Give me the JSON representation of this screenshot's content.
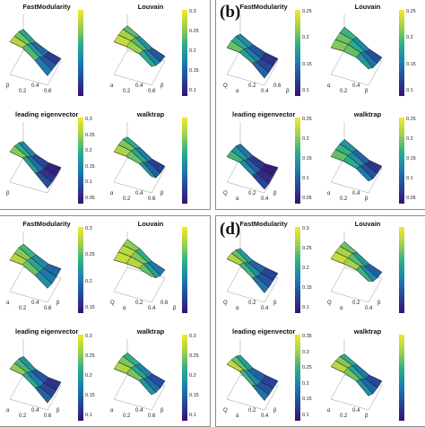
{
  "panels": [
    {
      "letter": "",
      "plots": [
        {
          "title": "FastModularity",
          "ticks": [],
          "axis_labels": [
            "β",
            "0.2",
            "0.4",
            "0.6"
          ]
        },
        {
          "title": "Louvain",
          "ticks": [
            "0.3",
            "0.25",
            "0.2",
            "0.15",
            "0.1"
          ],
          "axis_labels": [
            "α",
            "0.2",
            "0.4",
            "0.6",
            "β"
          ]
        },
        {
          "title": "leading eigenvector",
          "ticks": [
            "0.3",
            "0.25",
            "0.2",
            "0.15",
            "0.1",
            "0.05"
          ],
          "axis_labels": [
            "β"
          ]
        },
        {
          "title": "walktrap",
          "ticks": [],
          "axis_labels": [
            "α",
            "0.2",
            "0.4",
            "0.6",
            "β"
          ]
        }
      ]
    },
    {
      "letter": "(b)",
      "plots": [
        {
          "title": "FastModularity",
          "ticks": [
            "0.25",
            "0.2",
            "0.15",
            "0.1"
          ],
          "axis_labels": [
            "Q",
            "α",
            "0.2",
            "0.4",
            "0.6",
            "β"
          ]
        },
        {
          "title": "Louvain",
          "ticks": [
            "0.25",
            "0.2",
            "0.15",
            "0.1"
          ],
          "axis_labels": [
            "α",
            "0.2",
            "0.4",
            "β"
          ]
        },
        {
          "title": "leading eigenvector",
          "ticks": [
            "0.25",
            "0.2",
            "0.15",
            "0.1",
            "0.05"
          ],
          "axis_labels": [
            "Q",
            "α",
            "0.2",
            "0.4",
            "β"
          ]
        },
        {
          "title": "walktrap",
          "ticks": [
            "0.25",
            "0.2",
            "0.15",
            "0.1",
            "0.05"
          ],
          "axis_labels": [
            "α",
            "0.2",
            "0.4",
            "β"
          ]
        }
      ]
    },
    {
      "letter": "",
      "plots": [
        {
          "title": "FastModularity",
          "ticks": [
            "0.3",
            "0.25",
            "0.2",
            "0.15"
          ],
          "axis_labels": [
            "α",
            "0.2",
            "0.4",
            "0.6",
            "β"
          ]
        },
        {
          "title": "Louvain",
          "ticks": [],
          "axis_labels": [
            "Q",
            "α",
            "0.2",
            "0.4",
            "0.6",
            "β"
          ]
        },
        {
          "title": "leading eigenvector",
          "ticks": [
            "0.3",
            "0.25",
            "0.2",
            "0.15",
            "0.1"
          ],
          "axis_labels": [
            "α",
            "0.2",
            "0.4",
            "0.6",
            "β"
          ]
        },
        {
          "title": "walktrap",
          "ticks": [
            "0.3",
            "0.25",
            "0.2",
            "0.15",
            "0.1"
          ],
          "axis_labels": [
            "α",
            "0.2",
            "0.4",
            "0.6",
            "β"
          ]
        }
      ]
    },
    {
      "letter": "(d)",
      "plots": [
        {
          "title": "FastModularity",
          "ticks": [
            "0.3",
            "0.25",
            "0.2",
            "0.15",
            "0.1"
          ],
          "axis_labels": [
            "Q",
            "α",
            "0.2",
            "0.4",
            "β"
          ]
        },
        {
          "title": "Louvain",
          "ticks": [],
          "axis_labels": [
            "Q",
            "α",
            "0.2",
            "0.4",
            "β"
          ]
        },
        {
          "title": "leading eigenvector",
          "ticks": [
            "0.35",
            "0.3",
            "0.25",
            "0.2",
            "0.15",
            "0.1"
          ],
          "axis_labels": [
            "Q",
            "α",
            "0.2",
            "0.4",
            "β"
          ]
        },
        {
          "title": "walktrap",
          "ticks": [],
          "axis_labels": [
            "α",
            "0.2",
            "0.4",
            "β"
          ]
        }
      ]
    }
  ],
  "colors": {
    "high": "#f5e82a",
    "mid": "#2aae8a",
    "low": "#25479a",
    "lowest": "#3a0f6e"
  },
  "chart_data": {
    "type": "surface",
    "title": "",
    "xlabel": "α",
    "ylabel": "β",
    "zlabel": "Q",
    "x": [
      0.0,
      0.2,
      0.4,
      0.6
    ],
    "y": [
      0.0,
      0.2,
      0.4,
      0.6
    ],
    "surfaces": [
      {
        "panel": "",
        "method": "FastModularity",
        "z": [
          [
            0.32,
            0.3,
            0.22,
            0.12
          ],
          [
            0.3,
            0.26,
            0.18,
            0.1
          ],
          [
            0.27,
            0.2,
            0.12,
            0.08
          ],
          [
            0.22,
            0.14,
            0.09,
            0.06
          ]
        ]
      },
      {
        "panel": "",
        "method": "Louvain",
        "z": [
          [
            0.32,
            0.31,
            0.28,
            0.2
          ],
          [
            0.31,
            0.29,
            0.24,
            0.14
          ],
          [
            0.29,
            0.25,
            0.17,
            0.1
          ],
          [
            0.25,
            0.19,
            0.12,
            0.08
          ]
        ]
      },
      {
        "panel": "",
        "method": "leading eigenvector",
        "z": [
          [
            0.3,
            0.28,
            0.18,
            0.08
          ],
          [
            0.28,
            0.22,
            0.12,
            0.06
          ],
          [
            0.24,
            0.15,
            0.08,
            0.05
          ],
          [
            0.18,
            0.1,
            0.06,
            0.05
          ]
        ]
      },
      {
        "panel": "",
        "method": "walktrap",
        "z": [
          [
            0.3,
            0.29,
            0.26,
            0.18
          ],
          [
            0.29,
            0.27,
            0.2,
            0.1
          ],
          [
            0.27,
            0.22,
            0.14,
            0.07
          ],
          [
            0.22,
            0.16,
            0.09,
            0.06
          ]
        ]
      },
      {
        "panel": "(b)",
        "method": "FastModularity",
        "z": [
          [
            0.27,
            0.26,
            0.2,
            0.1
          ],
          [
            0.26,
            0.22,
            0.14,
            0.08
          ],
          [
            0.23,
            0.16,
            0.1,
            0.07
          ],
          [
            0.18,
            0.12,
            0.08,
            0.06
          ]
        ]
      },
      {
        "panel": "(b)",
        "method": "Louvain",
        "z": [
          [
            0.27,
            0.27,
            0.25,
            0.18
          ],
          [
            0.27,
            0.26,
            0.22,
            0.12
          ],
          [
            0.26,
            0.23,
            0.16,
            0.09
          ],
          [
            0.24,
            0.18,
            0.11,
            0.07
          ]
        ]
      },
      {
        "panel": "(b)",
        "method": "leading eigenvector",
        "z": [
          [
            0.26,
            0.24,
            0.16,
            0.07
          ],
          [
            0.24,
            0.19,
            0.11,
            0.05
          ],
          [
            0.21,
            0.13,
            0.07,
            0.05
          ],
          [
            0.16,
            0.09,
            0.05,
            0.05
          ]
        ]
      },
      {
        "panel": "(b)",
        "method": "walktrap",
        "z": [
          [
            0.26,
            0.25,
            0.22,
            0.14
          ],
          [
            0.25,
            0.23,
            0.17,
            0.09
          ],
          [
            0.23,
            0.19,
            0.12,
            0.07
          ],
          [
            0.2,
            0.14,
            0.08,
            0.06
          ]
        ]
      },
      {
        "panel": "",
        "method": "FastModularity",
        "z": [
          [
            0.31,
            0.3,
            0.24,
            0.16
          ],
          [
            0.3,
            0.27,
            0.2,
            0.13
          ],
          [
            0.28,
            0.22,
            0.16,
            0.12
          ],
          [
            0.24,
            0.18,
            0.13,
            0.12
          ]
        ]
      },
      {
        "panel": "",
        "method": "Louvain",
        "z": [
          [
            0.31,
            0.31,
            0.3,
            0.26
          ],
          [
            0.31,
            0.3,
            0.27,
            0.18
          ],
          [
            0.3,
            0.28,
            0.21,
            0.13
          ],
          [
            0.28,
            0.23,
            0.15,
            0.11
          ]
        ]
      },
      {
        "panel": "",
        "method": "leading eigenvector",
        "z": [
          [
            0.3,
            0.28,
            0.2,
            0.1
          ],
          [
            0.28,
            0.23,
            0.14,
            0.08
          ],
          [
            0.25,
            0.17,
            0.1,
            0.07
          ],
          [
            0.2,
            0.12,
            0.08,
            0.07
          ]
        ]
      },
      {
        "panel": "",
        "method": "walktrap",
        "z": [
          [
            0.3,
            0.29,
            0.26,
            0.17
          ],
          [
            0.29,
            0.27,
            0.21,
            0.12
          ],
          [
            0.27,
            0.22,
            0.15,
            0.09
          ],
          [
            0.23,
            0.17,
            0.11,
            0.08
          ]
        ]
      },
      {
        "panel": "(d)",
        "method": "FastModularity",
        "z": [
          [
            0.32,
            0.3,
            0.22,
            0.12
          ],
          [
            0.3,
            0.25,
            0.16,
            0.1
          ],
          [
            0.26,
            0.18,
            0.12,
            0.09
          ],
          [
            0.2,
            0.13,
            0.1,
            0.08
          ]
        ]
      },
      {
        "panel": "(d)",
        "method": "Louvain",
        "z": [
          [
            0.32,
            0.31,
            0.29,
            0.22
          ],
          [
            0.31,
            0.29,
            0.25,
            0.15
          ],
          [
            0.29,
            0.26,
            0.18,
            0.11
          ],
          [
            0.26,
            0.2,
            0.13,
            0.09
          ]
        ]
      },
      {
        "panel": "(d)",
        "method": "leading eigenvector",
        "z": [
          [
            0.34,
            0.31,
            0.22,
            0.12
          ],
          [
            0.31,
            0.25,
            0.15,
            0.1
          ],
          [
            0.27,
            0.18,
            0.11,
            0.09
          ],
          [
            0.21,
            0.13,
            0.1,
            0.08
          ]
        ]
      },
      {
        "panel": "(d)",
        "method": "walktrap",
        "z": [
          [
            0.32,
            0.3,
            0.26,
            0.16
          ],
          [
            0.3,
            0.27,
            0.2,
            0.11
          ],
          [
            0.27,
            0.22,
            0.14,
            0.09
          ],
          [
            0.22,
            0.16,
            0.1,
            0.08
          ]
        ]
      }
    ]
  }
}
